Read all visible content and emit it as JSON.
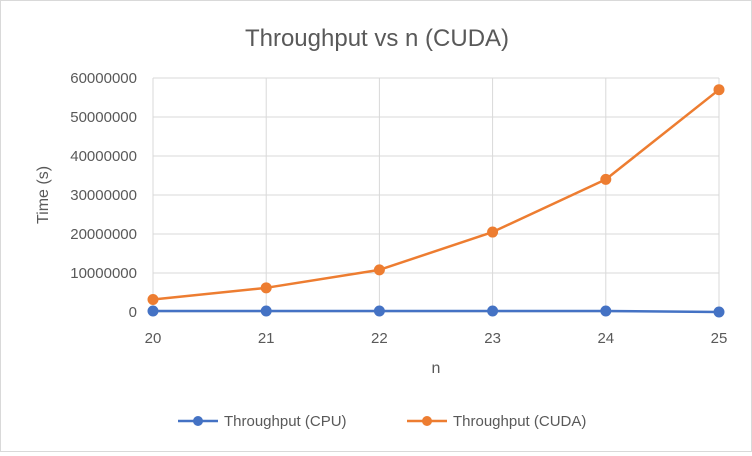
{
  "chart_data": {
    "type": "line",
    "title": "Throughput vs n (CUDA)",
    "xlabel": "n",
    "ylabel": "Time (s)",
    "x": [
      20,
      21,
      22,
      23,
      24,
      25
    ],
    "ylim": [
      0,
      60000000
    ],
    "yticks": [
      0,
      10000000,
      20000000,
      30000000,
      40000000,
      50000000,
      60000000
    ],
    "ytick_labels": [
      "0",
      "10000000",
      "20000000",
      "30000000",
      "40000000",
      "50000000",
      "60000000"
    ],
    "grid": true,
    "legend_position": "bottom",
    "series": [
      {
        "name": "Throughput (CPU)",
        "color": "#4472c4",
        "values": [
          250000,
          250000,
          250000,
          250000,
          250000,
          0
        ]
      },
      {
        "name": "Throughput (CUDA)",
        "color": "#ed7d31",
        "values": [
          3200000,
          6200000,
          10800000,
          20500000,
          34000000,
          57000000
        ]
      }
    ]
  }
}
